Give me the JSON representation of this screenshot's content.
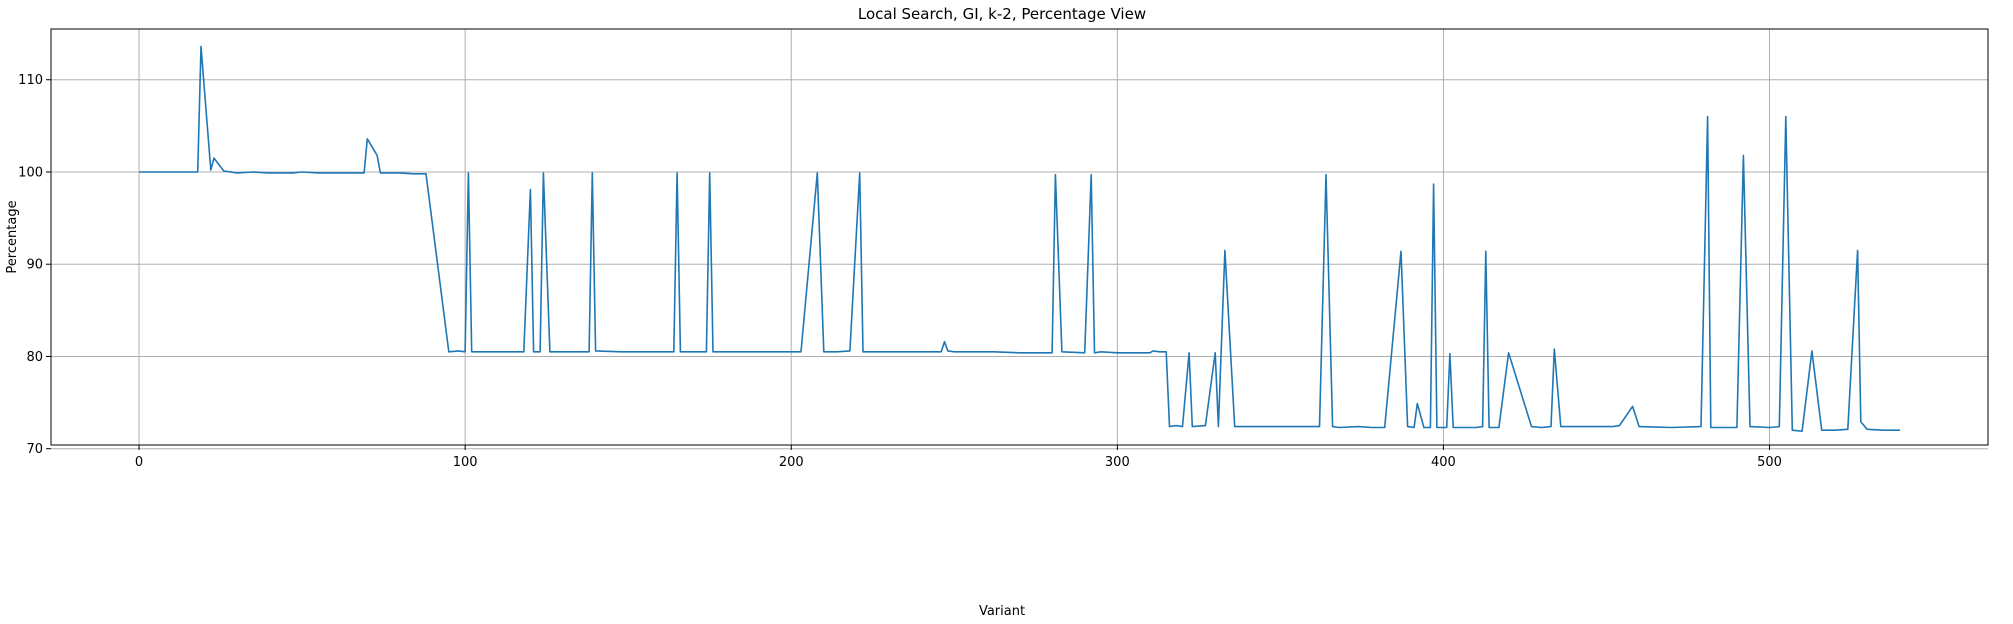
{
  "chart_data": {
    "type": "line",
    "title": "Local Search, GI, k-2, Percentage View",
    "xlabel": "Variant",
    "ylabel": "Percentage",
    "xlim": [
      -27,
      567
    ],
    "ylim": [
      70.4,
      115.5
    ],
    "xticks": [
      0,
      100,
      200,
      300,
      400,
      500
    ],
    "yticks": [
      70,
      80,
      90,
      100,
      110
    ],
    "grid": true,
    "legend": "none",
    "colors": {
      "line": "#1f77b4",
      "grid": "#b0b0b0"
    },
    "series": [
      {
        "points": [
          [
            0,
            100.0
          ],
          [
            3,
            100.0
          ],
          [
            6,
            100.0
          ],
          [
            10,
            100.0
          ],
          [
            15,
            100.0
          ],
          [
            18,
            100.0
          ],
          [
            19,
            113.6
          ],
          [
            22,
            100.2
          ],
          [
            23,
            101.5
          ],
          [
            26,
            100.1
          ],
          [
            30,
            99.9
          ],
          [
            35,
            100.0
          ],
          [
            40,
            99.9
          ],
          [
            45,
            99.9
          ],
          [
            47,
            99.9
          ],
          [
            50,
            100.0
          ],
          [
            55,
            99.9
          ],
          [
            60,
            99.9
          ],
          [
            65,
            99.9
          ],
          [
            69,
            99.9
          ],
          [
            70,
            103.6
          ],
          [
            73,
            101.8
          ],
          [
            74,
            99.9
          ],
          [
            80,
            99.9
          ],
          [
            84,
            99.8
          ],
          [
            88,
            99.8
          ],
          [
            95,
            80.5
          ],
          [
            98,
            80.6
          ],
          [
            100,
            80.5
          ],
          [
            101,
            99.9
          ],
          [
            102,
            80.5
          ],
          [
            110,
            80.5
          ],
          [
            118,
            80.5
          ],
          [
            120,
            98.1
          ],
          [
            121,
            80.5
          ],
          [
            123,
            80.5
          ],
          [
            124,
            99.9
          ],
          [
            126,
            80.5
          ],
          [
            130,
            80.5
          ],
          [
            138,
            80.5
          ],
          [
            139,
            99.9
          ],
          [
            140,
            80.6
          ],
          [
            148,
            80.5
          ],
          [
            160,
            80.5
          ],
          [
            164,
            80.5
          ],
          [
            165,
            99.9
          ],
          [
            166,
            80.5
          ],
          [
            174,
            80.5
          ],
          [
            175,
            99.9
          ],
          [
            176,
            80.5
          ],
          [
            190,
            80.5
          ],
          [
            200,
            80.5
          ],
          [
            203,
            80.5
          ],
          [
            208,
            99.9
          ],
          [
            210,
            80.5
          ],
          [
            214,
            80.5
          ],
          [
            218,
            80.6
          ],
          [
            221,
            99.9
          ],
          [
            222,
            80.5
          ],
          [
            230,
            80.5
          ],
          [
            240,
            80.5
          ],
          [
            246,
            80.5
          ],
          [
            247,
            81.6
          ],
          [
            248,
            80.6
          ],
          [
            250,
            80.5
          ],
          [
            256,
            80.5
          ],
          [
            262,
            80.5
          ],
          [
            270,
            80.4
          ],
          [
            276,
            80.4
          ],
          [
            280,
            80.4
          ],
          [
            281,
            99.7
          ],
          [
            283,
            80.5
          ],
          [
            290,
            80.4
          ],
          [
            292,
            99.7
          ],
          [
            293,
            80.4
          ],
          [
            295,
            80.5
          ],
          [
            300,
            80.4
          ],
          [
            310,
            80.4
          ],
          [
            311,
            80.6
          ],
          [
            313,
            80.5
          ],
          [
            315,
            80.5
          ],
          [
            316,
            72.4
          ],
          [
            318,
            72.5
          ],
          [
            320,
            72.4
          ],
          [
            322,
            80.4
          ],
          [
            323,
            72.4
          ],
          [
            327,
            72.5
          ],
          [
            330,
            80.4
          ],
          [
            331,
            72.4
          ],
          [
            333,
            91.5
          ],
          [
            336,
            72.4
          ],
          [
            342,
            72.4
          ],
          [
            350,
            72.4
          ],
          [
            358,
            72.4
          ],
          [
            362,
            72.4
          ],
          [
            364,
            99.7
          ],
          [
            366,
            72.4
          ],
          [
            368,
            72.3
          ],
          [
            374,
            72.4
          ],
          [
            378,
            72.3
          ],
          [
            382,
            72.3
          ],
          [
            387,
            91.4
          ],
          [
            389,
            72.4
          ],
          [
            391,
            72.3
          ],
          [
            392,
            74.9
          ],
          [
            394,
            72.3
          ],
          [
            396,
            72.3
          ],
          [
            397,
            98.7
          ],
          [
            398,
            72.3
          ],
          [
            401,
            72.3
          ],
          [
            402,
            80.3
          ],
          [
            403,
            72.3
          ],
          [
            410,
            72.3
          ],
          [
            412,
            72.4
          ],
          [
            413,
            91.4
          ],
          [
            414,
            72.3
          ],
          [
            417,
            72.3
          ],
          [
            420,
            80.4
          ],
          [
            427,
            72.4
          ],
          [
            430,
            72.3
          ],
          [
            433,
            72.4
          ],
          [
            434,
            80.8
          ],
          [
            436,
            72.4
          ],
          [
            445,
            72.4
          ],
          [
            452,
            72.4
          ],
          [
            454,
            72.5
          ],
          [
            458,
            74.6
          ],
          [
            460,
            72.4
          ],
          [
            470,
            72.3
          ],
          [
            479,
            72.4
          ],
          [
            481,
            106.0
          ],
          [
            482,
            72.3
          ],
          [
            490,
            72.3
          ],
          [
            492,
            101.8
          ],
          [
            494,
            72.4
          ],
          [
            500,
            72.3
          ],
          [
            503,
            72.4
          ],
          [
            505,
            106.0
          ],
          [
            507,
            72.0
          ],
          [
            510,
            71.9
          ],
          [
            513,
            80.6
          ],
          [
            516,
            72.0
          ],
          [
            520,
            72.0
          ],
          [
            524,
            72.1
          ],
          [
            527,
            91.5
          ],
          [
            528,
            72.9
          ],
          [
            530,
            72.1
          ],
          [
            535,
            72.0
          ],
          [
            540,
            72.0
          ]
        ]
      }
    ]
  }
}
